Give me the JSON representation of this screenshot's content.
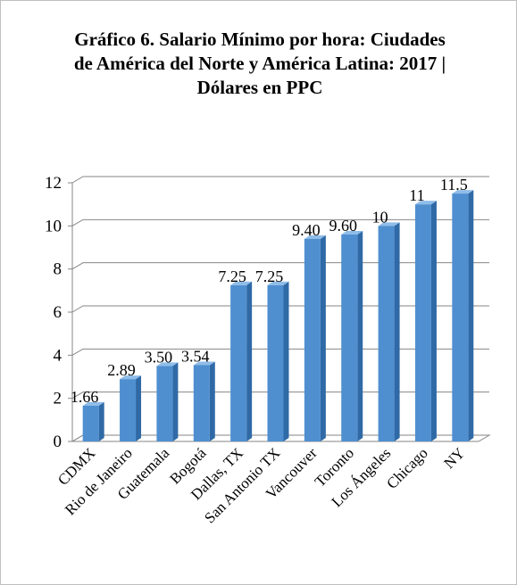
{
  "chart_data": {
    "type": "bar",
    "title": "Gráfico 6. Salario Mínimo por hora: Ciudades de América del Norte y América Latina: 2017 | Dólares en PPC",
    "categories": [
      "CDMX",
      "Rio de Janeiro",
      "Guatemala",
      "Bogotá",
      "Dallas, TX",
      "San Antonio TX",
      "Vancouver",
      "Toronto",
      "Los Ángeles",
      "Chicago",
      "NY"
    ],
    "values": [
      1.66,
      2.89,
      3.5,
      3.54,
      7.25,
      7.25,
      9.4,
      9.6,
      10,
      11,
      11.5
    ],
    "value_labels": [
      "1.66",
      "2.89",
      "3.50",
      "3.54",
      "7.25",
      "7.25",
      "9.40",
      "9.60",
      "10",
      "11",
      "11.5"
    ],
    "color": "#4f8fd0",
    "ylim": [
      0,
      12
    ],
    "yticks": [
      0,
      2,
      4,
      6,
      8,
      10,
      12
    ],
    "grid": true
  }
}
